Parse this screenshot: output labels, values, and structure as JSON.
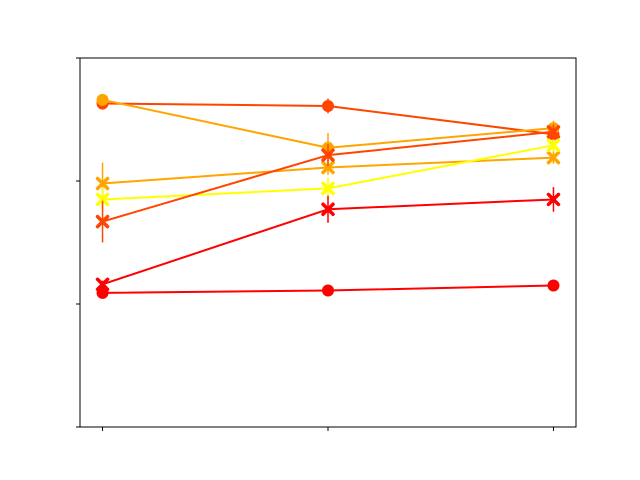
{
  "chart_data": {
    "type": "line",
    "title": "",
    "xlabel": "",
    "ylabel": "",
    "x": [
      0,
      1,
      2
    ],
    "xlim": [
      -0.1,
      2.1
    ],
    "ylim": [
      0,
      3
    ],
    "yticks": [
      0,
      1,
      2,
      3
    ],
    "grid": false,
    "legend": "none",
    "series": [
      {
        "color": "#ff4500",
        "marker": "circle",
        "values": [
          2.63,
          2.61,
          2.38
        ],
        "errors": [
          0.05,
          0.06,
          0.07
        ]
      },
      {
        "color": "#ffa500",
        "marker": "circle",
        "values": [
          2.66,
          2.27,
          2.43
        ],
        "errors": [
          0.03,
          0.12,
          0.06
        ]
      },
      {
        "color": "#ff0000",
        "marker": "circle",
        "values": [
          1.09,
          1.11,
          1.15
        ],
        "errors": [
          0.02,
          0.02,
          0.02
        ]
      },
      {
        "color": "#ffa500",
        "marker": "x",
        "values": [
          1.98,
          2.11,
          2.19
        ],
        "errors": [
          0.17,
          0.06,
          0.05
        ]
      },
      {
        "color": "#ffff00",
        "marker": "x",
        "values": [
          1.85,
          1.94,
          2.29
        ],
        "errors": [
          0.1,
          0.09,
          0.05
        ]
      },
      {
        "color": "#ff4500",
        "marker": "x",
        "values": [
          1.67,
          2.21,
          2.4
        ],
        "errors": [
          0.17,
          0.09,
          0.06
        ]
      },
      {
        "color": "#ff0000",
        "marker": "x",
        "values": [
          1.16,
          1.77,
          1.85
        ],
        "errors": [
          0.03,
          0.11,
          0.1
        ]
      }
    ]
  }
}
